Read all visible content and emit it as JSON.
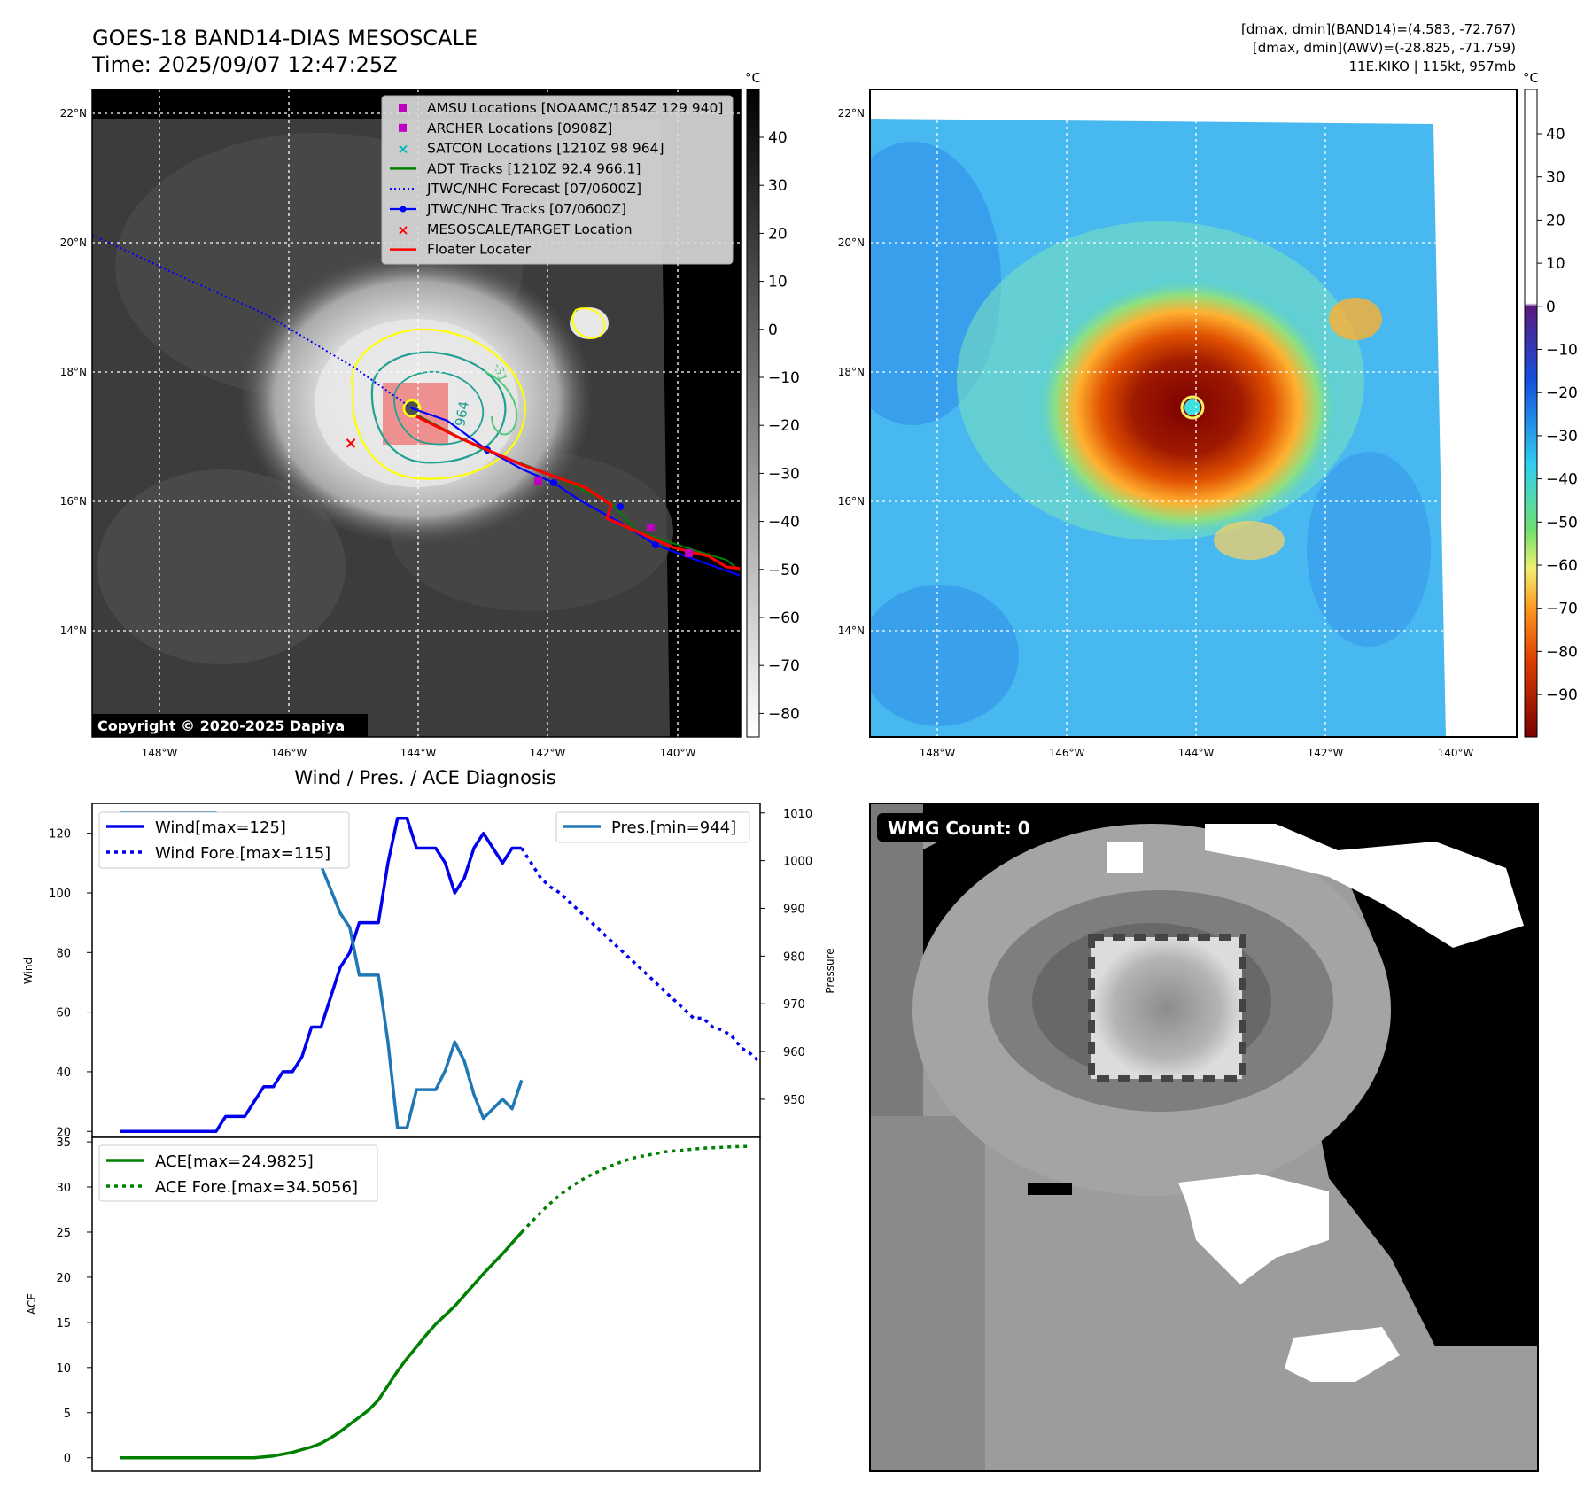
{
  "header": {
    "title": "GOES-18 BAND14-DIAS MESOSCALE",
    "time": "Time: 2025/09/07 12:47:25Z",
    "right_line1": "[dmax, dmin](BAND14)=(4.583, -72.767)",
    "right_line2": "[dmax, dmin](AWV)=(-28.825, -71.759)",
    "right_line3": "11E.KIKO | 115kt, 957mb"
  },
  "colors": {
    "wind": "#0000ee",
    "pressure": "#1f77b4",
    "ace": "#008000",
    "track": "#0000ff",
    "floater": "#ff0000",
    "adt": "#008000",
    "amsu": "#c000c0",
    "satcon": "#00b8b8",
    "contour_yellow": "#ffff00",
    "contour_teal": "#20a090",
    "contour_green": "#50c878"
  },
  "ir_map": {
    "lat_labels": [
      "22°N",
      "20°N",
      "18°N",
      "16°N",
      "14°N"
    ],
    "lon_labels": [
      "148°W",
      "146°W",
      "144°W",
      "142°W",
      "140°W"
    ],
    "cbar_unit": "°C",
    "cbar_ticks": [
      "40",
      "30",
      "20",
      "10",
      "0",
      "−10",
      "−20",
      "−30",
      "−40",
      "−50",
      "−60",
      "−70",
      "−80"
    ],
    "copyright": "Copyright © 2020-2025 Dapiya",
    "contour_labels": [
      "964",
      "-31"
    ],
    "legend": [
      {
        "label": "AMSU Locations [NOAAMC/1854Z 129 940]",
        "icon": "square-marker"
      },
      {
        "label": "ARCHER Locations [0908Z]",
        "icon": "square-marker"
      },
      {
        "label": "SATCON Locations [1210Z 98 964]",
        "icon": "x-marker"
      },
      {
        "label": "ADT Tracks [1210Z 92.4 966.1]",
        "icon": "line"
      },
      {
        "label": "JTWC/NHC Forecast [07/0600Z]",
        "icon": "dotted-line"
      },
      {
        "label": "JTWC/NHC Tracks [07/0600Z]",
        "icon": "line-dot"
      },
      {
        "label": "MESOSCALE/TARGET Location",
        "icon": "x-marker"
      },
      {
        "label": "Floater Locater",
        "icon": "line"
      }
    ]
  },
  "wv_map": {
    "lat_labels": [
      "22°N",
      "20°N",
      "18°N",
      "16°N",
      "14°N"
    ],
    "lon_labels": [
      "148°W",
      "146°W",
      "144°W",
      "142°W",
      "140°W"
    ],
    "cbar_unit": "°C",
    "cbar_ticks": [
      "40",
      "30",
      "20",
      "10",
      "0",
      "−10",
      "−20",
      "−30",
      "−40",
      "−50",
      "−60",
      "−70",
      "−80",
      "−90"
    ]
  },
  "wmg_panel": {
    "count_label": "WMG Count: 0"
  },
  "chart_data": [
    {
      "type": "line",
      "title": "Wind / Pres. / ACE Diagnosis",
      "ylabel": "Wind",
      "ylabel_right": "Pressure",
      "ylim": [
        18,
        130
      ],
      "ylim_right": [
        942,
        1012
      ],
      "yticks": [
        20,
        40,
        60,
        80,
        100,
        120
      ],
      "yticks_right": [
        950,
        960,
        970,
        980,
        990,
        1000,
        1010
      ],
      "x_count": 65,
      "series": [
        {
          "name": "Wind[max=125]",
          "axis": "left",
          "style": "solid",
          "x_start": 0,
          "values": [
            20,
            20,
            20,
            20,
            20,
            20,
            20,
            20,
            20,
            20,
            20,
            25,
            25,
            25,
            30,
            35,
            35,
            40,
            40,
            45,
            55,
            55,
            65,
            75,
            80,
            90,
            90,
            90,
            110,
            125,
            125,
            115,
            115,
            115,
            110,
            100,
            105,
            115,
            120,
            115,
            110,
            115,
            115
          ]
        },
        {
          "name": "Wind Fore.[max=115]",
          "axis": "left",
          "style": "dotted",
          "x_start": 42,
          "values": [
            115,
            110,
            105,
            102,
            100,
            97,
            94,
            91,
            88,
            85,
            82,
            79,
            76,
            73,
            70,
            67,
            64,
            61,
            58,
            58,
            55,
            54,
            52,
            48,
            46,
            43
          ]
        },
        {
          "name": "Pres.[min=944]",
          "axis": "right",
          "style": "solid",
          "x_start": 0,
          "values": [
            1010,
            1010,
            1010,
            1010,
            1010,
            1010,
            1010,
            1010,
            1010,
            1010,
            1010,
            1009,
            1009,
            1009,
            1008,
            1008,
            1007,
            1006,
            1004,
            1002,
            1001,
            999,
            994,
            989,
            986,
            976,
            976,
            976,
            962,
            944,
            944,
            952,
            952,
            952,
            956,
            962,
            958,
            951,
            946,
            948,
            950,
            948,
            954
          ]
        }
      ]
    },
    {
      "type": "line",
      "ylabel": "ACE",
      "ylim": [
        -1.5,
        35.5
      ],
      "yticks": [
        0,
        5,
        10,
        15,
        20,
        25,
        30,
        35
      ],
      "x_count": 65,
      "series": [
        {
          "name": "ACE[max=24.9825]",
          "style": "solid",
          "x_start": 0,
          "values": [
            0,
            0,
            0,
            0,
            0,
            0,
            0,
            0,
            0,
            0,
            0,
            0,
            0,
            0,
            0,
            0.1,
            0.2,
            0.4,
            0.6,
            0.9,
            1.2,
            1.6,
            2.2,
            2.9,
            3.7,
            4.5,
            5.3,
            6.4,
            8.0,
            9.6,
            11.0,
            12.3,
            13.6,
            14.8,
            15.8,
            16.8,
            18.0,
            19.2,
            20.4,
            21.5,
            22.6,
            23.8,
            24.98
          ]
        },
        {
          "name": "ACE Fore.[max=34.5056]",
          "style": "dotted",
          "x_start": 42,
          "values": [
            24.98,
            26.1,
            27.2,
            28.2,
            29.1,
            29.9,
            30.6,
            31.2,
            31.7,
            32.2,
            32.6,
            33.0,
            33.3,
            33.5,
            33.7,
            33.9,
            34.0,
            34.1,
            34.2,
            34.3,
            34.35,
            34.4,
            34.45,
            34.5,
            34.5
          ]
        }
      ]
    }
  ]
}
